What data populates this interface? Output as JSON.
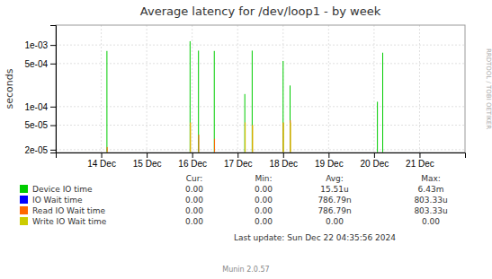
{
  "chart_data": {
    "type": "spike",
    "title": "Average latency for /dev/loop1 - by week",
    "ylabel": "seconds",
    "log": "y",
    "grid": true,
    "xlim": [
      1733788800,
      1734566400
    ],
    "xticks": [
      {
        "value": 1733875200,
        "label": "14 Dec"
      },
      {
        "value": 1733961600,
        "label": "15 Dec"
      },
      {
        "value": 1734048000,
        "label": "16 Dec"
      },
      {
        "value": 1734134400,
        "label": "17 Dec"
      },
      {
        "value": 1734220800,
        "label": "18 Dec"
      },
      {
        "value": 1734307200,
        "label": "19 Dec"
      },
      {
        "value": 1734393600,
        "label": "20 Dec"
      },
      {
        "value": 1734480000,
        "label": "21 Dec"
      }
    ],
    "ylim": [
      1.8e-05,
      0.0021
    ],
    "yticks": [
      {
        "value": 2e-05,
        "label": "2e-05"
      },
      {
        "value": 5e-05,
        "label": "5e-05"
      },
      {
        "value": 0.0001,
        "label": "1e-04"
      },
      {
        "value": 0.0005,
        "label": "5e-04"
      },
      {
        "value": 0.001,
        "label": "1e-03"
      }
    ],
    "legend_columns": [
      "Cur:",
      "Min:",
      "Avg:",
      "Max:"
    ],
    "series": [
      {
        "name": "Device IO time",
        "color": "#00cc00",
        "x": [
          1733886000,
          1734044000,
          1734060000,
          1734090000,
          1734148000,
          1734162000,
          1734220800,
          1734234000,
          1734400000,
          1734410000
        ],
        "values": [
          0.0008,
          0.00115,
          0.00081,
          0.0008,
          0.00016,
          0.00081,
          0.00055,
          0.00022,
          0.00012,
          0.00075
        ],
        "legend_values": [
          "0.00",
          "0.00",
          "15.51u",
          "6.43m"
        ]
      },
      {
        "name": "IO Wait time",
        "color": "#0000ff",
        "x": [],
        "values": [],
        "legend_values": [
          "0.00",
          "0.00",
          "786.79n",
          "803.33u"
        ]
      },
      {
        "name": "Read IO Wait time",
        "color": "#ff6600",
        "x": [
          1733886500,
          1734044500,
          1734060500,
          1734090500,
          1734148500,
          1734162500,
          1734221000,
          1734234500
        ],
        "values": [
          2.2e-05,
          5.5e-05,
          3.5e-05,
          3e-05,
          5.5e-05,
          5e-05,
          5.5e-05,
          6e-05
        ],
        "legend_values": [
          "0.00",
          "0.00",
          "786.79n",
          "803.33u"
        ]
      },
      {
        "name": "Write IO Wait time",
        "color": "#cccc00",
        "x": [
          1734044800,
          1734148800,
          1734162800,
          1734221300,
          1734234800
        ],
        "values": [
          5.5e-05,
          5.5e-05,
          5e-05,
          5.5e-05,
          5.5e-05
        ],
        "legend_values": [
          "0.00",
          "0.00",
          "0.00",
          "0.00"
        ]
      }
    ],
    "annotations": [
      "RRDTOOL / TOBI OETIKER",
      "Last update: Sun Dec 22 04:35:56 2024",
      "Munin 2.0.57"
    ]
  }
}
